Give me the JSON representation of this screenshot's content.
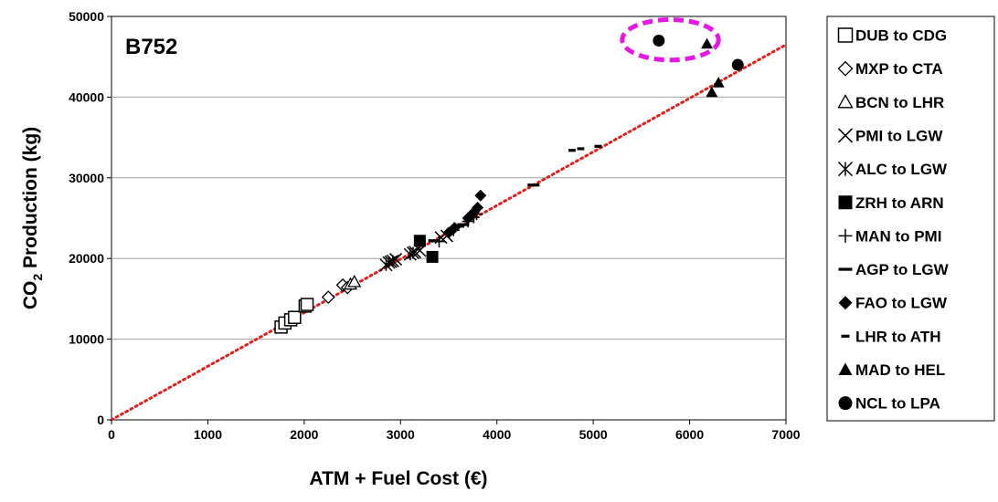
{
  "colors": {
    "trendline": "#e0201b",
    "highlight": "#e617e6",
    "grid": "#a0a0a0",
    "marker": "#000000"
  },
  "chart_data": {
    "type": "scatter",
    "title": "B752",
    "xlabel": "ATM + Fuel Cost (€)",
    "ylabel_main": "CO",
    "ylabel_sub": "2",
    "ylabel_rest": " Production (kg)",
    "xlim": [
      0,
      7000
    ],
    "ylim": [
      0,
      50000
    ],
    "x_ticks": [
      0,
      1000,
      2000,
      3000,
      4000,
      5000,
      6000,
      7000
    ],
    "x_tick_labels": [
      "0",
      "1000",
      "2000",
      "3000",
      "4000",
      "5000",
      "6000",
      "7000"
    ],
    "y_ticks": [
      0,
      10000,
      20000,
      30000,
      40000,
      50000
    ],
    "y_tick_labels": [
      "0",
      "10000",
      "20000",
      "30000",
      "40000",
      "50000"
    ],
    "grid": "horizontal",
    "legend_position": "right",
    "trendline": {
      "style": "dotted",
      "points": [
        [
          0,
          0
        ],
        [
          7000,
          46500
        ]
      ]
    },
    "highlight_ellipse": {
      "style": "dashed",
      "center": [
        5800,
        47100
      ],
      "rx": 500,
      "ry": 2500
    },
    "series": [
      {
        "name": "DUB to CDG",
        "marker": "square-open",
        "points": [
          [
            1760,
            11500
          ],
          [
            1800,
            12000
          ],
          [
            1860,
            12400
          ],
          [
            1900,
            12700
          ],
          [
            2010,
            14100
          ],
          [
            2030,
            14300
          ]
        ]
      },
      {
        "name": "MXP to CTA",
        "marker": "diamond-open",
        "points": [
          [
            2250,
            15200
          ],
          [
            2400,
            16700
          ],
          [
            2450,
            16400
          ]
        ]
      },
      {
        "name": "BCN to LHR",
        "marker": "triangle-open",
        "points": [
          [
            2480,
            16800
          ],
          [
            2520,
            17100
          ]
        ]
      },
      {
        "name": "PMI to LGW",
        "marker": "x",
        "points": [
          [
            2900,
            19600
          ],
          [
            2950,
            19900
          ],
          [
            3150,
            20800
          ],
          [
            3200,
            21000
          ],
          [
            3420,
            22600
          ],
          [
            3480,
            22800
          ]
        ]
      },
      {
        "name": "ALC to LGW",
        "marker": "asterisk",
        "points": [
          [
            2850,
            19200
          ],
          [
            2880,
            19500
          ],
          [
            2920,
            19700
          ],
          [
            3100,
            20500
          ],
          [
            3130,
            20700
          ]
        ]
      },
      {
        "name": "ZRH to ARN",
        "marker": "square-filled",
        "points": [
          [
            3200,
            22200
          ],
          [
            3330,
            20200
          ]
        ]
      },
      {
        "name": "MAN to PMI",
        "marker": "plus",
        "points": [
          [
            3400,
            22100
          ],
          [
            3550,
            23500
          ],
          [
            3700,
            24600
          ],
          [
            3760,
            25100
          ],
          [
            3790,
            25500
          ]
        ]
      },
      {
        "name": "AGP to LGW",
        "marker": "dash-long",
        "points": [
          [
            3350,
            22200
          ],
          [
            3600,
            24000
          ],
          [
            3650,
            24200
          ],
          [
            4380,
            29100
          ]
        ]
      },
      {
        "name": "FAO to LGW",
        "marker": "diamond-filled",
        "points": [
          [
            3500,
            23200
          ],
          [
            3560,
            23800
          ],
          [
            3700,
            25000
          ],
          [
            3760,
            25700
          ],
          [
            3800,
            26300
          ],
          [
            3830,
            27800
          ]
        ]
      },
      {
        "name": "LHR to ATH",
        "marker": "dash-short",
        "points": [
          [
            4780,
            33400
          ],
          [
            4870,
            33600
          ],
          [
            5050,
            33900
          ]
        ]
      },
      {
        "name": "MAD to HEL",
        "marker": "triangle-filled",
        "points": [
          [
            6180,
            46600
          ],
          [
            6230,
            40600
          ],
          [
            6300,
            41800
          ]
        ]
      },
      {
        "name": "NCL to LPA",
        "marker": "circle-filled",
        "points": [
          [
            5680,
            47000
          ],
          [
            6500,
            44000
          ]
        ]
      }
    ]
  }
}
